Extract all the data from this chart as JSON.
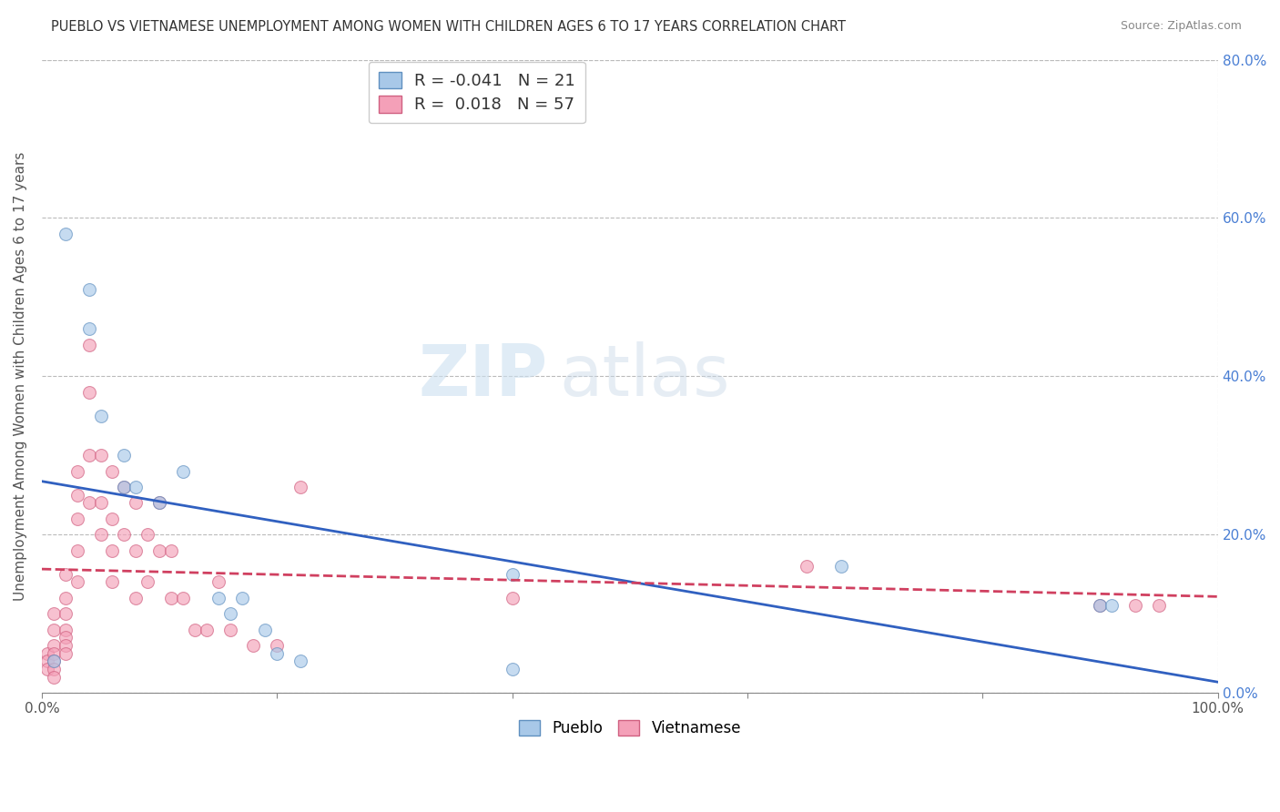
{
  "title": "PUEBLO VS VIETNAMESE UNEMPLOYMENT AMONG WOMEN WITH CHILDREN AGES 6 TO 17 YEARS CORRELATION CHART",
  "source": "Source: ZipAtlas.com",
  "ylabel": "Unemployment Among Women with Children Ages 6 to 17 years",
  "xlim": [
    0,
    1
  ],
  "ylim": [
    0,
    0.8
  ],
  "xticks": [
    0.0,
    0.2,
    0.4,
    0.6,
    0.8,
    1.0
  ],
  "xtick_labels_show": [
    "0.0%",
    "",
    "",
    "",
    "",
    "100.0%"
  ],
  "yticks": [
    0.0,
    0.2,
    0.4,
    0.6,
    0.8
  ],
  "ytick_labels_right": [
    "0.0%",
    "20.0%",
    "40.0%",
    "60.0%",
    "80.0%"
  ],
  "pueblo_color": "#a8c8e8",
  "vietnamese_color": "#f4a0b8",
  "pueblo_edge_color": "#6090c0",
  "vietnamese_edge_color": "#d06080",
  "trend_pueblo_color": "#3060c0",
  "trend_vietnamese_color": "#d04060",
  "watermark_zip": "ZIP",
  "watermark_atlas": "atlas",
  "legend_r_pueblo": "-0.041",
  "legend_n_pueblo": "21",
  "legend_r_vietnamese": "0.018",
  "legend_n_vietnamese": "57",
  "pueblo_x": [
    0.01,
    0.02,
    0.04,
    0.04,
    0.05,
    0.07,
    0.07,
    0.08,
    0.1,
    0.12,
    0.15,
    0.16,
    0.17,
    0.19,
    0.2,
    0.22,
    0.4,
    0.4,
    0.68,
    0.9,
    0.91
  ],
  "pueblo_y": [
    0.04,
    0.58,
    0.51,
    0.46,
    0.35,
    0.3,
    0.26,
    0.26,
    0.24,
    0.28,
    0.12,
    0.1,
    0.12,
    0.08,
    0.05,
    0.04,
    0.15,
    0.03,
    0.16,
    0.11,
    0.11
  ],
  "vietnamese_x": [
    0.005,
    0.005,
    0.005,
    0.01,
    0.01,
    0.01,
    0.01,
    0.01,
    0.01,
    0.01,
    0.02,
    0.02,
    0.02,
    0.02,
    0.02,
    0.02,
    0.02,
    0.03,
    0.03,
    0.03,
    0.03,
    0.03,
    0.04,
    0.04,
    0.04,
    0.04,
    0.05,
    0.05,
    0.05,
    0.06,
    0.06,
    0.06,
    0.06,
    0.07,
    0.07,
    0.08,
    0.08,
    0.08,
    0.09,
    0.09,
    0.1,
    0.1,
    0.11,
    0.11,
    0.12,
    0.13,
    0.14,
    0.15,
    0.16,
    0.18,
    0.2,
    0.22,
    0.4,
    0.65,
    0.9,
    0.93,
    0.95
  ],
  "vietnamese_y": [
    0.05,
    0.04,
    0.03,
    0.1,
    0.08,
    0.06,
    0.05,
    0.04,
    0.03,
    0.02,
    0.15,
    0.12,
    0.1,
    0.08,
    0.07,
    0.06,
    0.05,
    0.28,
    0.25,
    0.22,
    0.18,
    0.14,
    0.44,
    0.38,
    0.3,
    0.24,
    0.3,
    0.24,
    0.2,
    0.28,
    0.22,
    0.18,
    0.14,
    0.26,
    0.2,
    0.24,
    0.18,
    0.12,
    0.2,
    0.14,
    0.24,
    0.18,
    0.18,
    0.12,
    0.12,
    0.08,
    0.08,
    0.14,
    0.08,
    0.06,
    0.06,
    0.26,
    0.12,
    0.16,
    0.11,
    0.11,
    0.11
  ],
  "background_color": "#ffffff",
  "grid_color": "#bbbbbb",
  "marker_size": 100,
  "marker_alpha": 0.65
}
